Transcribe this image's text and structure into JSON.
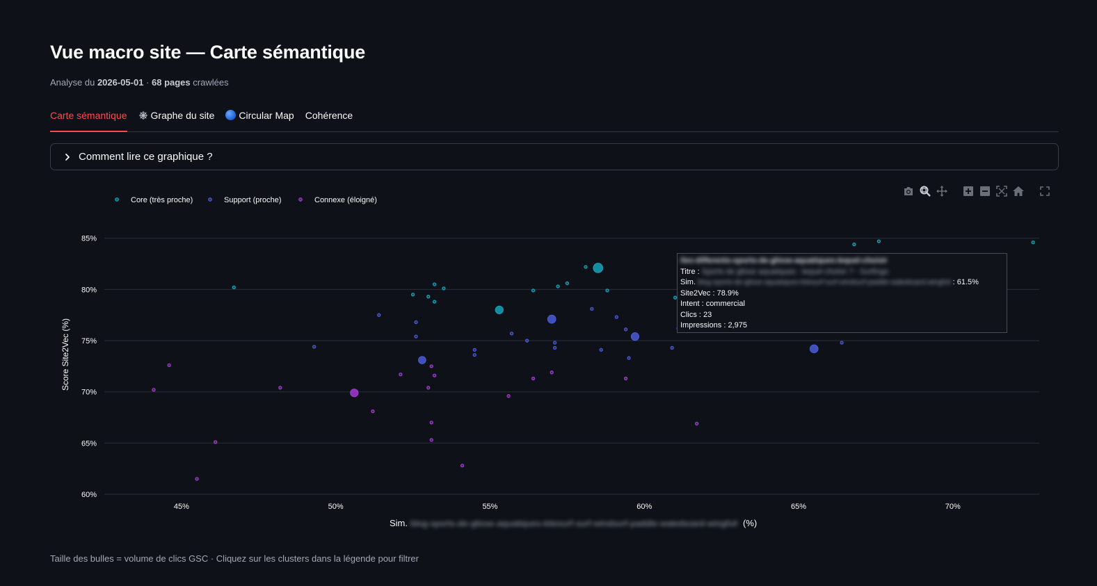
{
  "page": {
    "title": "Vue macro site — Carte sémantique",
    "subtitle_prefix": "Analyse du ",
    "subtitle_date": "2026-05-01",
    "subtitle_sep": " · ",
    "subtitle_count": "68 pages",
    "subtitle_suffix": " crawlées"
  },
  "tabs": [
    {
      "label": "Carte sémantique",
      "active": true,
      "icon": null
    },
    {
      "label": "Graphe du site",
      "active": false,
      "icon": "spider-web-icon"
    },
    {
      "label": "Circular Map",
      "active": false,
      "icon": "blue-circle-icon"
    },
    {
      "label": "Cohérence",
      "active": false,
      "icon": null
    }
  ],
  "expander": {
    "label": "Comment lire ce graphique ?"
  },
  "modebar": [
    "camera-icon",
    "zoom-icon",
    "pan-icon",
    "zoom-in-icon",
    "zoom-out-icon",
    "autoscale-icon",
    "reset-axes-icon",
    "fullscreen-icon"
  ],
  "footnote": "Taille des bulles = volume de clics GSC · Cliquez sur les clusters dans la légende pour filtrer",
  "colors": {
    "core": "#17a2b8",
    "support": "#4a5bd6",
    "connexe": "#a23ad1",
    "active_tab": "#ff4b4b"
  },
  "chart_data": {
    "type": "scatter",
    "title": "",
    "xlabel_prefix": "Sim.",
    "xlabel_blurred": "blog-sports-de-glisse-aquatiques-kitesurf-surf-windsurf-paddle-wakeboard-wingfoil",
    "xlabel_suffix": "(%)",
    "ylabel": "Score Site2Vec (%)",
    "xlim": [
      42.5,
      72.8
    ],
    "ylim": [
      60,
      86
    ],
    "xticks": [
      45,
      50,
      55,
      60,
      65,
      70
    ],
    "xtick_labels": [
      "45%",
      "50%",
      "55%",
      "60%",
      "65%",
      "70%"
    ],
    "yticks": [
      60,
      65,
      70,
      75,
      80,
      85
    ],
    "ytick_labels": [
      "60%",
      "65%",
      "70%",
      "75%",
      "80%",
      "85%"
    ],
    "grid": true,
    "legend_position": "top-left",
    "series": [
      {
        "name": "Core (très proche)",
        "points": [
          [
            46.7,
            80.2,
            0
          ],
          [
            52.5,
            79.5,
            0
          ],
          [
            53.0,
            79.3,
            0
          ],
          [
            53.2,
            78.8,
            0
          ],
          [
            53.2,
            80.5,
            0
          ],
          [
            53.5,
            80.1,
            0
          ],
          [
            55.3,
            78.0,
            4
          ],
          [
            56.4,
            79.9,
            0
          ],
          [
            57.2,
            80.3,
            0
          ],
          [
            57.5,
            80.6,
            0
          ],
          [
            58.1,
            82.2,
            0
          ],
          [
            58.5,
            82.1,
            10
          ],
          [
            58.8,
            79.9,
            0
          ],
          [
            61.0,
            79.2,
            0
          ],
          [
            61.3,
            80.1,
            0
          ],
          [
            61.5,
            78.9,
            23
          ],
          [
            66.8,
            84.4,
            0
          ],
          [
            67.6,
            84.7,
            0
          ],
          [
            72.6,
            84.6,
            0
          ]
        ]
      },
      {
        "name": "Support (proche)",
        "points": [
          [
            49.3,
            74.4,
            0
          ],
          [
            51.4,
            77.5,
            0
          ],
          [
            52.6,
            76.8,
            0
          ],
          [
            52.6,
            75.4,
            0
          ],
          [
            52.8,
            73.1,
            3
          ],
          [
            54.5,
            74.1,
            0
          ],
          [
            54.5,
            73.6,
            0
          ],
          [
            55.7,
            75.7,
            0
          ],
          [
            56.2,
            75.0,
            0
          ],
          [
            57.0,
            77.1,
            5
          ],
          [
            57.1,
            74.8,
            0
          ],
          [
            57.1,
            74.3,
            0
          ],
          [
            58.3,
            78.1,
            0
          ],
          [
            58.6,
            74.1,
            0
          ],
          [
            59.1,
            77.3,
            0
          ],
          [
            59.4,
            76.1,
            0
          ],
          [
            59.5,
            73.3,
            0
          ],
          [
            59.7,
            75.4,
            4
          ],
          [
            60.9,
            74.3,
            0
          ],
          [
            61.1,
            76.2,
            0
          ],
          [
            61.6,
            76.1,
            0
          ],
          [
            65.5,
            74.2,
            5
          ],
          [
            66.4,
            74.8,
            0
          ]
        ]
      },
      {
        "name": "Connexe (éloigné)",
        "points": [
          [
            44.1,
            70.2,
            0
          ],
          [
            44.6,
            72.6,
            0
          ],
          [
            45.5,
            61.5,
            0
          ],
          [
            46.1,
            65.1,
            0
          ],
          [
            48.2,
            70.4,
            0
          ],
          [
            50.6,
            69.9,
            4
          ],
          [
            51.2,
            68.1,
            0
          ],
          [
            52.1,
            71.7,
            0
          ],
          [
            53.0,
            70.4,
            0
          ],
          [
            53.1,
            72.5,
            0
          ],
          [
            53.2,
            71.6,
            0
          ],
          [
            53.1,
            67.0,
            0
          ],
          [
            53.1,
            65.3,
            0
          ],
          [
            54.1,
            62.8,
            0
          ],
          [
            55.6,
            69.6,
            0
          ],
          [
            56.4,
            71.3,
            0
          ],
          [
            57.0,
            71.9,
            0
          ],
          [
            59.4,
            71.3,
            0
          ],
          [
            61.7,
            66.9,
            0
          ]
        ]
      }
    ],
    "size_note": "Taille des bulles = volume de clics GSC",
    "tooltip": {
      "url_blurred": "/les-differents-sports-de-glisse-aquatiques-lequel-choisir",
      "titre_label": "Titre :",
      "titre_blurred": "Sports de glisse aquatiques : lequel choisir ? - Surfingo",
      "sim_label": "Sim.",
      "sim_blurred": "blog-sports-de-glisse-aquatiques-kitesurf-surf-windsurf-paddle-wakeboard-wingfoil",
      "sim_value": ": 61.5%",
      "site2vec": "Site2Vec : 78.9%",
      "intent": "Intent : commercial",
      "clics": "Clics : 23",
      "impressions": "Impressions : 2,975"
    }
  }
}
